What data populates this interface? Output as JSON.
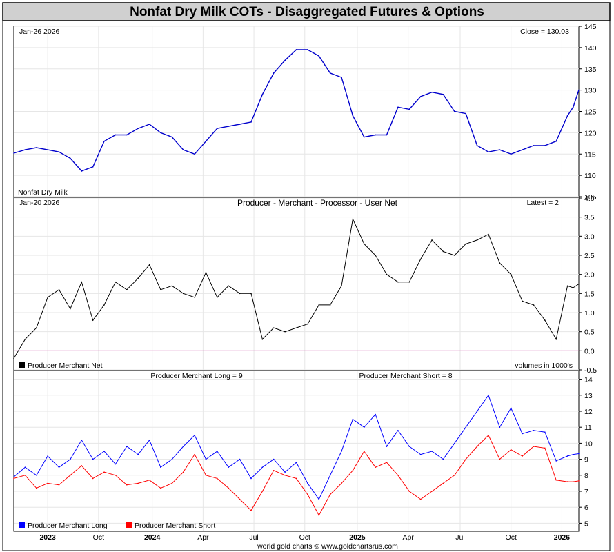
{
  "title": "Nonfat Dry Milk COTs - Disaggregated Futures & Options",
  "footer": "world gold charts © www.goldchartsrus.com",
  "x_labels": [
    "2023",
    "Oct",
    "2024",
    "Apr",
    "Jul",
    "Oct",
    "2025",
    "Apr",
    "Jul",
    "Oct",
    "2026"
  ],
  "colors": {
    "banner": "#d0d0d0",
    "price": "#0000cc",
    "net": "#000000",
    "long": "#0000ff",
    "short": "#ff0000",
    "zero": "#cc3399"
  },
  "chart_data": [
    {
      "type": "line",
      "panel": "price",
      "date_label": "Jan-26  2026",
      "latest_label": "Close = 130.03",
      "legend": "Nonfat Dry Milk",
      "ylim": [
        105,
        145
      ],
      "y_ticks": [
        105,
        110,
        115,
        120,
        125,
        130,
        135,
        140,
        145
      ],
      "x": [
        0.0,
        0.02,
        0.04,
        0.06,
        0.08,
        0.1,
        0.12,
        0.14,
        0.16,
        0.18,
        0.2,
        0.22,
        0.24,
        0.26,
        0.28,
        0.3,
        0.32,
        0.34,
        0.36,
        0.38,
        0.4,
        0.42,
        0.44,
        0.46,
        0.48,
        0.5,
        0.52,
        0.54,
        0.56,
        0.58,
        0.6,
        0.62,
        0.64,
        0.66,
        0.68,
        0.7,
        0.72,
        0.74,
        0.76,
        0.78,
        0.8,
        0.82,
        0.84,
        0.86,
        0.88,
        0.9,
        0.92,
        0.94,
        0.96,
        0.98,
        0.99,
        1.0
      ],
      "values": [
        115.2,
        116.0,
        116.5,
        116.0,
        115.5,
        114.0,
        111.0,
        112.0,
        118.0,
        119.5,
        119.5,
        121.0,
        122.0,
        120.0,
        119.0,
        116.0,
        115.0,
        118.0,
        121.0,
        121.5,
        122.0,
        122.5,
        129.0,
        134.0,
        137.0,
        139.5,
        139.5,
        138.0,
        134.0,
        133.0,
        124.0,
        119.0,
        119.5,
        119.5,
        126.0,
        125.5,
        128.5,
        129.5,
        129.0,
        125.0,
        124.5,
        117.0,
        115.5,
        116.0,
        115.0,
        116.0,
        117.0,
        117.0,
        118.0,
        124.0,
        126.0,
        130.03
      ]
    },
    {
      "type": "line",
      "panel": "net",
      "date_label": "Jan-20  2026",
      "title": "Producer - Merchant - Processor - User Net",
      "latest_label": "Latest = 2",
      "legend": "Producer Merchant Net",
      "units_note": "volumes in 1000's",
      "ylim": [
        -0.5,
        4.0
      ],
      "y_ticks": [
        -0.5,
        0.0,
        0.5,
        1.0,
        1.5,
        2.0,
        2.5,
        3.0,
        3.5,
        4.0
      ],
      "x": [
        0.0,
        0.02,
        0.04,
        0.06,
        0.08,
        0.1,
        0.12,
        0.14,
        0.16,
        0.18,
        0.2,
        0.22,
        0.24,
        0.26,
        0.28,
        0.3,
        0.32,
        0.34,
        0.36,
        0.38,
        0.4,
        0.42,
        0.44,
        0.46,
        0.48,
        0.5,
        0.52,
        0.54,
        0.56,
        0.58,
        0.6,
        0.62,
        0.64,
        0.66,
        0.68,
        0.7,
        0.72,
        0.74,
        0.76,
        0.78,
        0.8,
        0.82,
        0.84,
        0.86,
        0.88,
        0.9,
        0.92,
        0.94,
        0.96,
        0.98,
        0.99,
        1.0
      ],
      "values": [
        -0.2,
        0.3,
        0.6,
        1.4,
        1.6,
        1.1,
        1.8,
        0.8,
        1.2,
        1.8,
        1.6,
        1.9,
        2.25,
        1.6,
        1.7,
        1.5,
        1.4,
        2.05,
        1.4,
        1.7,
        1.5,
        1.5,
        0.3,
        0.6,
        0.5,
        0.6,
        0.7,
        1.2,
        1.2,
        1.7,
        3.45,
        2.8,
        2.5,
        2.0,
        1.8,
        1.8,
        2.4,
        2.9,
        2.6,
        2.5,
        2.8,
        2.9,
        3.05,
        2.3,
        2.0,
        1.3,
        1.2,
        0.8,
        0.3,
        1.7,
        1.65,
        1.75
      ]
    },
    {
      "type": "line",
      "panel": "long_short",
      "ylim": [
        4.5,
        14.5
      ],
      "y_ticks": [
        5,
        6,
        7,
        8,
        9,
        10,
        11,
        12,
        13,
        14
      ],
      "x": [
        0.0,
        0.02,
        0.04,
        0.06,
        0.08,
        0.1,
        0.12,
        0.14,
        0.16,
        0.18,
        0.2,
        0.22,
        0.24,
        0.26,
        0.28,
        0.3,
        0.32,
        0.34,
        0.36,
        0.38,
        0.4,
        0.42,
        0.44,
        0.46,
        0.48,
        0.5,
        0.52,
        0.54,
        0.56,
        0.58,
        0.6,
        0.62,
        0.64,
        0.66,
        0.68,
        0.7,
        0.72,
        0.74,
        0.76,
        0.78,
        0.8,
        0.82,
        0.84,
        0.86,
        0.88,
        0.9,
        0.92,
        0.94,
        0.96,
        0.98,
        0.99,
        1.0
      ],
      "series": [
        {
          "name": "Producer Merchant Long",
          "label": "Producer Merchant Long = 9",
          "values": [
            7.9,
            8.5,
            8.0,
            9.2,
            8.5,
            9.0,
            10.2,
            9.0,
            9.5,
            8.7,
            9.8,
            9.3,
            10.2,
            8.5,
            9.0,
            9.8,
            10.5,
            9.0,
            9.5,
            8.5,
            9.0,
            7.8,
            8.5,
            9.0,
            8.2,
            8.8,
            7.5,
            6.5,
            8.0,
            9.5,
            11.5,
            11.0,
            11.8,
            9.8,
            10.8,
            9.8,
            9.3,
            9.5,
            9.0,
            10.0,
            11.0,
            12.0,
            13.0,
            11.0,
            12.2,
            10.6,
            10.8,
            10.7,
            8.9,
            9.2,
            9.3,
            9.35
          ]
        },
        {
          "name": "Producer Merchant Short",
          "label": "Producer Merchant Short = 8",
          "values": [
            7.8,
            8.0,
            7.2,
            7.5,
            7.4,
            8.0,
            8.6,
            7.8,
            8.2,
            8.0,
            7.4,
            7.5,
            7.7,
            7.2,
            7.5,
            8.2,
            9.3,
            8.0,
            7.8,
            7.2,
            6.5,
            5.8,
            7.0,
            8.3,
            8.0,
            7.8,
            6.8,
            5.5,
            6.8,
            7.5,
            8.3,
            9.5,
            8.5,
            8.8,
            8.0,
            7.0,
            6.5,
            7.0,
            7.5,
            8.0,
            9.0,
            9.8,
            10.5,
            9.0,
            9.6,
            9.2,
            9.8,
            9.7,
            7.7,
            7.6,
            7.6,
            7.65
          ]
        }
      ]
    }
  ]
}
